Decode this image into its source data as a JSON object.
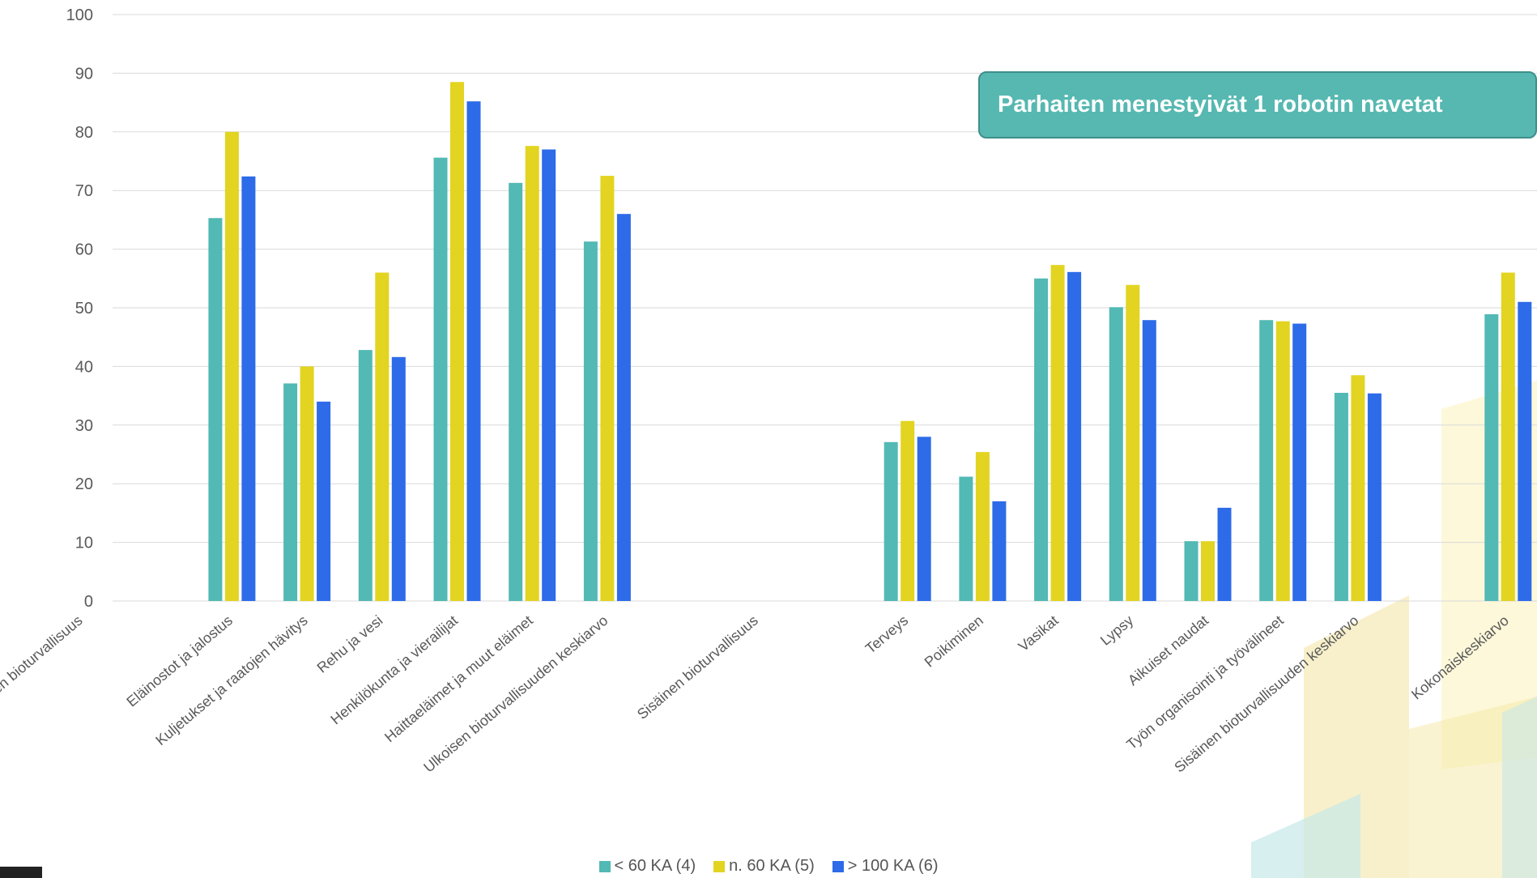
{
  "callout": {
    "text": "Parhaiten menestyivät 1 robotin navetat"
  },
  "legend": [
    {
      "label": "< 60 KA (4)",
      "color": "#52b9b4"
    },
    {
      "label": "n. 60 KA (5)",
      "color": "#e2d421"
    },
    {
      "label": "> 100 KA (6)",
      "color": "#2d6be8"
    }
  ],
  "chart_data": {
    "type": "bar",
    "ylim": [
      0,
      100
    ],
    "yticks": [
      0,
      10,
      20,
      30,
      40,
      50,
      60,
      70,
      80,
      90,
      100
    ],
    "grid": true,
    "legend_position": "bottom",
    "categories": [
      "Ulkoinen bioturvallisuus",
      "",
      "Eläinostot ja jalostus",
      "Kuljetukset ja raatojen hävitys",
      "Rehu ja vesi",
      "Henkilökunta ja vierailijat",
      "Haittaeläimet ja muut eläimet",
      "Ulkoisen bioturvallisuuden keskiarvo",
      "",
      "Sisäinen bioturvallisuus",
      "",
      "Terveys",
      "Poikiminen",
      "Vasikat",
      "Lypsy",
      "Aikuiset naudat",
      "Työn organisointi ja työvälineet",
      "Sisäinen bioturvallisuuden keskiarvo",
      "",
      "Kokonaiskeskiarvo"
    ],
    "series": [
      {
        "name": "< 60 KA (4)",
        "color": "#52b9b4",
        "values": [
          null,
          null,
          65.3,
          37.1,
          42.8,
          75.6,
          71.3,
          61.3,
          null,
          null,
          null,
          27.1,
          21.2,
          55.0,
          50.1,
          10.2,
          47.9,
          35.5,
          null,
          48.9
        ]
      },
      {
        "name": "n. 60 KA (5)",
        "color": "#e2d421",
        "values": [
          null,
          null,
          80.0,
          40.0,
          56.0,
          88.5,
          77.6,
          72.5,
          null,
          null,
          null,
          30.7,
          25.4,
          57.3,
          53.9,
          10.2,
          47.7,
          38.5,
          null,
          56.0
        ]
      },
      {
        "name": "> 100 KA (6)",
        "color": "#2d6be8",
        "values": [
          null,
          null,
          72.4,
          34.0,
          41.6,
          85.2,
          77.0,
          66.0,
          null,
          null,
          null,
          28.0,
          17.0,
          56.1,
          47.9,
          15.9,
          47.3,
          35.4,
          null,
          51.0
        ]
      }
    ]
  }
}
